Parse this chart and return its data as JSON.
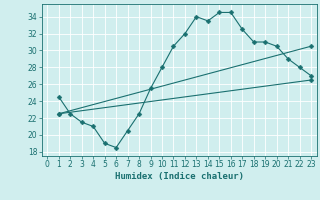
{
  "line1_x": [
    1,
    2,
    3,
    4,
    5,
    6,
    7,
    8,
    9,
    10,
    11,
    12,
    13,
    14,
    15,
    16,
    17,
    18,
    19,
    20,
    21,
    22,
    23
  ],
  "line1_y": [
    24.5,
    22.5,
    21.5,
    21.0,
    19.0,
    18.5,
    20.5,
    22.5,
    25.5,
    28.0,
    30.5,
    32.0,
    34.0,
    33.5,
    34.5,
    34.5,
    32.5,
    31.0,
    31.0,
    30.5,
    29.0,
    28.0,
    27.0
  ],
  "line2_x": [
    1,
    23
  ],
  "line2_y": [
    22.5,
    26.5
  ],
  "line3_x": [
    1,
    23
  ],
  "line3_y": [
    22.5,
    30.5
  ],
  "line_color": "#1a7070",
  "bg_color": "#d0eeee",
  "grid_color": "#ffffff",
  "xlabel": "Humidex (Indice chaleur)",
  "xlim": [
    -0.5,
    23.5
  ],
  "ylim": [
    17.5,
    35.5
  ],
  "yticks": [
    18,
    20,
    22,
    24,
    26,
    28,
    30,
    32,
    34
  ],
  "xticks": [
    0,
    1,
    2,
    3,
    4,
    5,
    6,
    7,
    8,
    9,
    10,
    11,
    12,
    13,
    14,
    15,
    16,
    17,
    18,
    19,
    20,
    21,
    22,
    23
  ],
  "marker": "D",
  "markersize": 2.5,
  "title_fontsize": 7,
  "xlabel_fontsize": 6.5,
  "tick_fontsize": 5.5
}
